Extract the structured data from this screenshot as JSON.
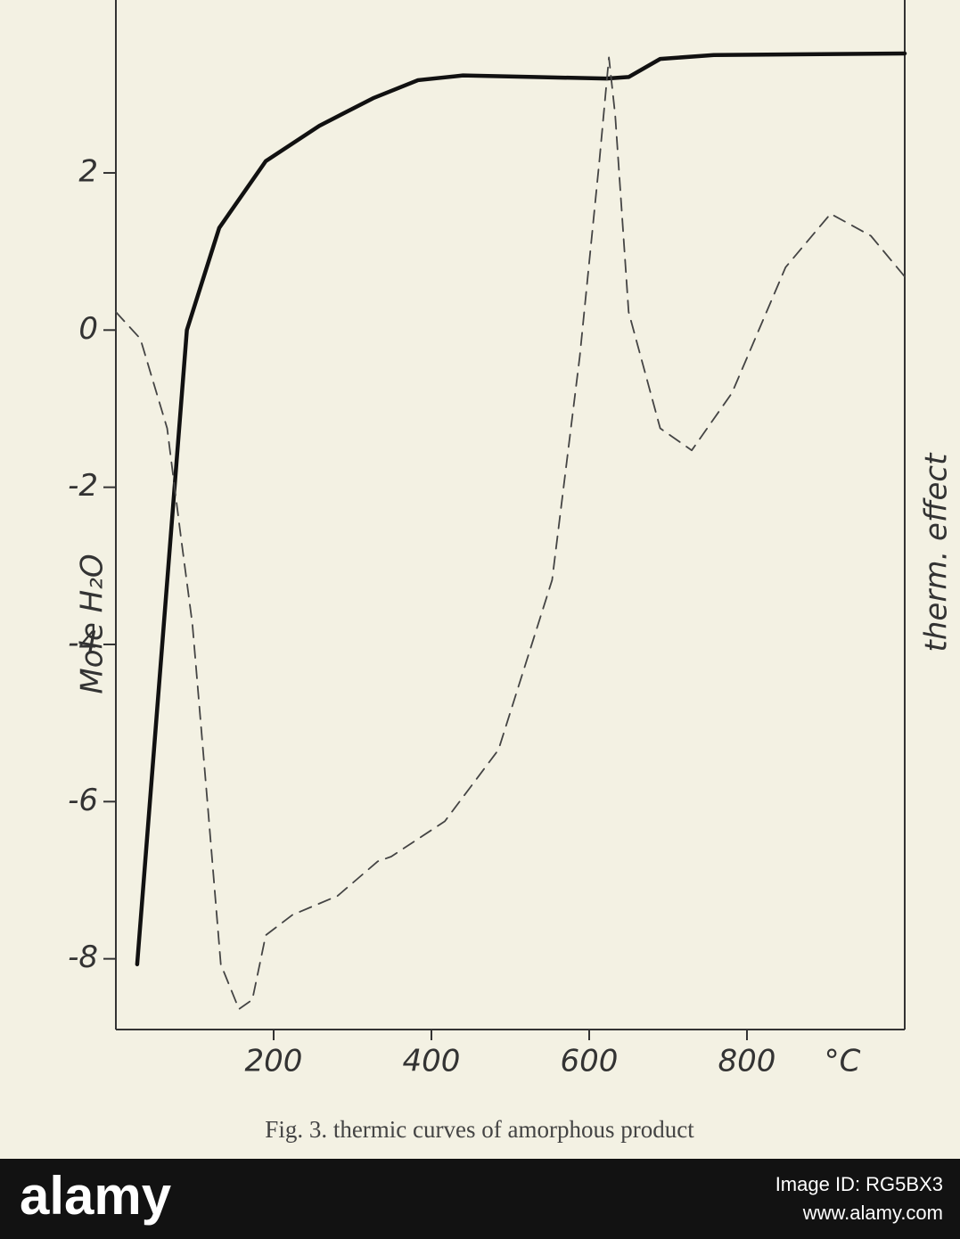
{
  "chart_data": {
    "type": "line",
    "ylabel": "Mole H₂O",
    "y2label": "therm. effect",
    "xlabel": "°C",
    "caption": "Fig. 3. thermic curves of amorphous product",
    "xlim": [
      0,
      1000
    ],
    "xticks": [
      200,
      400,
      600,
      800
    ],
    "ylim": [
      -8.9,
      4.2
    ],
    "yticks": [
      2,
      0,
      -2,
      -4,
      -6,
      -8
    ],
    "series": [
      {
        "color": "#111111",
        "dash": false,
        "x": [
          27,
          90,
          131,
          190,
          258,
          326,
          383,
          440,
          530,
          622,
          650,
          690,
          758,
          1000
        ],
        "values": [
          -8.07,
          0,
          1.3,
          2.15,
          2.6,
          2.95,
          3.18,
          3.24,
          3.22,
          3.2,
          3.22,
          3.45,
          3.5,
          3.52
        ]
      },
      {
        "color": "#444444",
        "dash": true,
        "x": [
          0,
          31,
          65,
          82,
          97,
          116,
          133,
          156,
          173,
          190,
          224,
          281,
          332,
          349,
          417,
          485,
          553,
          588,
          613,
          625,
          633,
          650,
          690,
          730,
          781,
          849,
          906,
          957,
          1000
        ],
        "values": [
          0.23,
          -0.11,
          -1.25,
          -2.6,
          -3.74,
          -6.0,
          -8.07,
          -8.64,
          -8.52,
          -7.7,
          -7.44,
          -7.2,
          -6.76,
          -6.7,
          -6.25,
          -5.34,
          -3.18,
          -0.34,
          2.16,
          3.47,
          2.73,
          0.23,
          -1.25,
          -1.53,
          -0.8,
          0.8,
          1.48,
          1.2,
          0.68
        ]
      }
    ]
  },
  "watermark": {
    "logo": "alamy",
    "image_id": "Image ID: RG5BX3",
    "url": "www.alamy.com"
  }
}
